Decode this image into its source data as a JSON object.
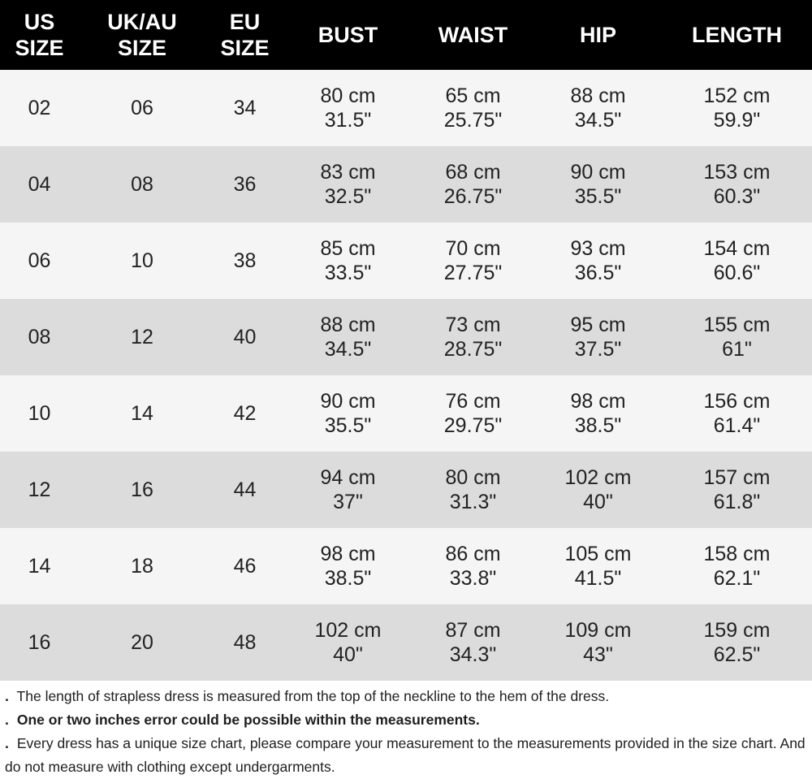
{
  "header": {
    "us": [
      "US",
      "SIZE"
    ],
    "uk": [
      "UK/AU",
      "SIZE"
    ],
    "eu": [
      "EU",
      "SIZE"
    ],
    "bust": "BUST",
    "waist": "WAIST",
    "hip": "HIP",
    "length": "LENGTH"
  },
  "rows": [
    {
      "us": "02",
      "uk": "06",
      "eu": "34",
      "bust": [
        "80 cm",
        "31.5\""
      ],
      "waist": [
        "65 cm",
        "25.75\""
      ],
      "hip": [
        "88 cm",
        "34.5\""
      ],
      "length": [
        "152 cm",
        "59.9\""
      ]
    },
    {
      "us": "04",
      "uk": "08",
      "eu": "36",
      "bust": [
        "83 cm",
        "32.5\""
      ],
      "waist": [
        "68 cm",
        "26.75\""
      ],
      "hip": [
        "90 cm",
        "35.5\""
      ],
      "length": [
        "153 cm",
        "60.3\""
      ]
    },
    {
      "us": "06",
      "uk": "10",
      "eu": "38",
      "bust": [
        "85 cm",
        "33.5\""
      ],
      "waist": [
        "70 cm",
        "27.75\""
      ],
      "hip": [
        "93 cm",
        "36.5\""
      ],
      "length": [
        "154 cm",
        "60.6\""
      ]
    },
    {
      "us": "08",
      "uk": "12",
      "eu": "40",
      "bust": [
        "88 cm",
        "34.5\""
      ],
      "waist": [
        "73 cm",
        "28.75\""
      ],
      "hip": [
        "95 cm",
        "37.5\""
      ],
      "length": [
        "155 cm",
        "61\""
      ]
    },
    {
      "us": "10",
      "uk": "14",
      "eu": "42",
      "bust": [
        "90 cm",
        "35.5\""
      ],
      "waist": [
        "76 cm",
        "29.75\""
      ],
      "hip": [
        "98 cm",
        "38.5\""
      ],
      "length": [
        "156 cm",
        "61.4\""
      ]
    },
    {
      "us": "12",
      "uk": "16",
      "eu": "44",
      "bust": [
        "94 cm",
        "37\""
      ],
      "waist": [
        "80 cm",
        "31.3\""
      ],
      "hip": [
        "102 cm",
        "40\""
      ],
      "length": [
        "157 cm",
        "61.8\""
      ]
    },
    {
      "us": "14",
      "uk": "18",
      "eu": "46",
      "bust": [
        "98 cm",
        "38.5\""
      ],
      "waist": [
        "86 cm",
        "33.8\""
      ],
      "hip": [
        "105 cm",
        "41.5\""
      ],
      "length": [
        "158 cm",
        "62.1\""
      ]
    },
    {
      "us": "16",
      "uk": "20",
      "eu": "48",
      "bust": [
        "102 cm",
        "40\""
      ],
      "waist": [
        "87 cm",
        "34.3\""
      ],
      "hip": [
        "109 cm",
        "43\""
      ],
      "length": [
        "159 cm",
        "62.5\""
      ]
    }
  ],
  "notes": [
    {
      "bullet": ".",
      "text": "The length of strapless dress is measured from the top of the neckline to the hem of the dress."
    },
    {
      "bullet": ".",
      "text": "One or two inches error could be possible within the measurements."
    },
    {
      "bullet": ".",
      "text": "Every dress has a unique size chart, please compare your measurement to the measurements provided in the size chart. And do not measure with clothing except undergarments."
    }
  ],
  "colors": {
    "header_bg": "#000000",
    "header_text": "#ffffff",
    "row_light": "#f5f5f5",
    "row_dark": "#dcdcdc"
  }
}
